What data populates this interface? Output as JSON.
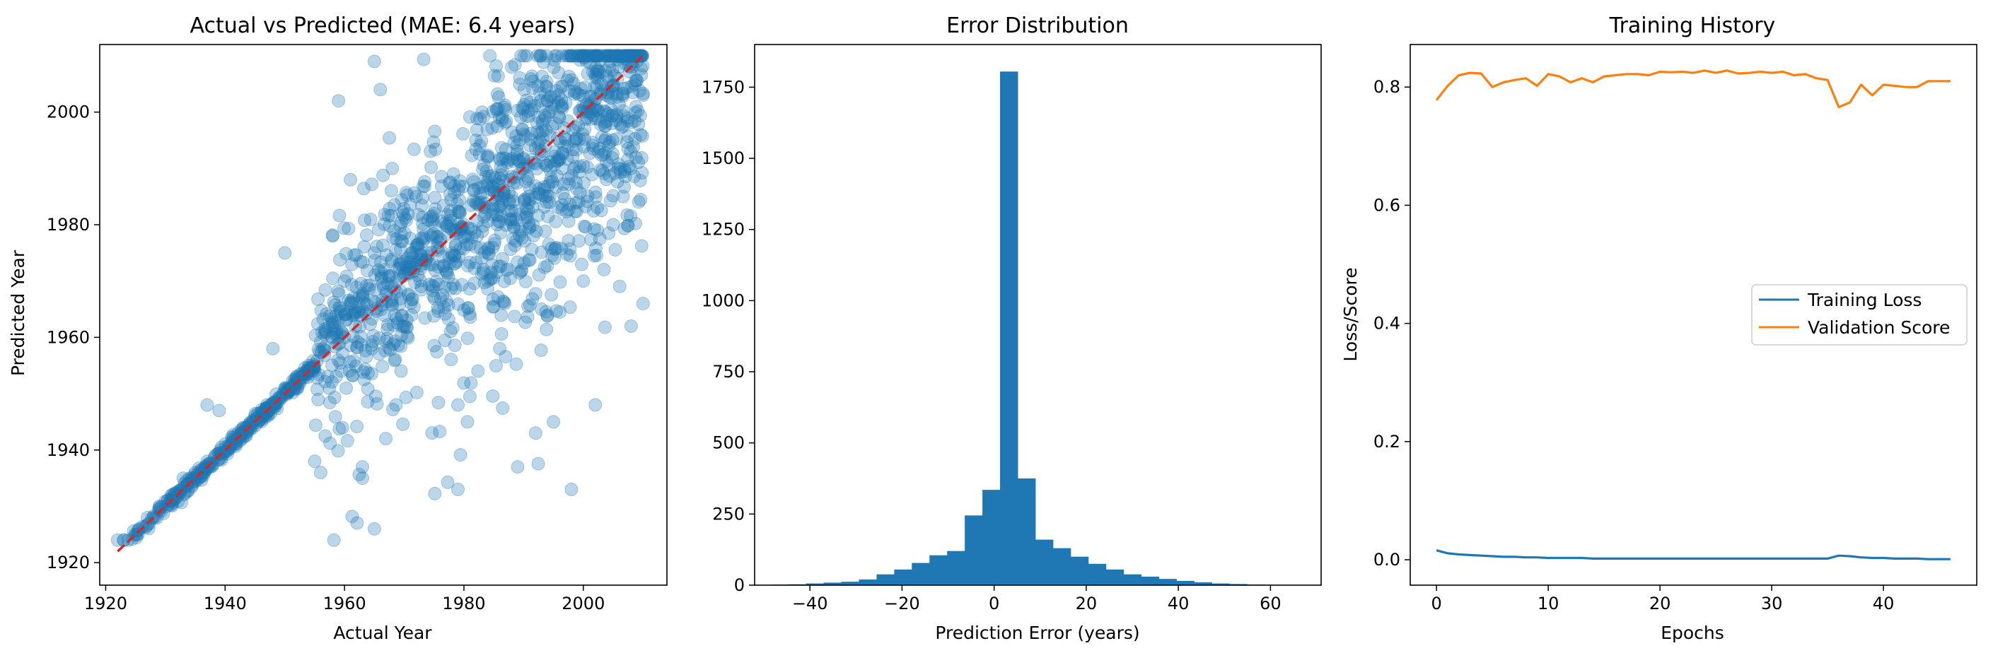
{
  "colors": {
    "scatter": "#1f77b4",
    "diagonal": "#d62728",
    "hist": "#1f77b4",
    "train_loss": "#1f77b4",
    "val_score": "#ff7f0e"
  },
  "chart_data": [
    {
      "type": "scatter",
      "title": "Actual vs Predicted (MAE: 6.4 years)",
      "xlabel": "Actual Year",
      "ylabel": "Predicted Year",
      "xlim": [
        1919,
        2014
      ],
      "ylim": [
        1916,
        2012
      ],
      "xticks": [
        1920,
        1940,
        1960,
        1980,
        2000
      ],
      "yticks": [
        1920,
        1940,
        1960,
        1980,
        2000
      ],
      "reference_line": {
        "x": [
          1922,
          2010
        ],
        "y": [
          1922,
          2010
        ],
        "style": "dashed"
      },
      "points_sample": [
        [
          1922,
          1924
        ],
        [
          1923,
          1924
        ],
        [
          1925,
          1925
        ],
        [
          1927,
          1928
        ],
        [
          1929,
          1930
        ],
        [
          1931,
          1932
        ],
        [
          1933,
          1935
        ],
        [
          1935,
          1936
        ],
        [
          1937,
          1938
        ],
        [
          1937,
          1948
        ],
        [
          1939,
          1947
        ],
        [
          1941,
          1941
        ],
        [
          1943,
          1944
        ],
        [
          1945,
          1946
        ],
        [
          1947,
          1948
        ],
        [
          1948,
          1958
        ],
        [
          1950,
          1975
        ],
        [
          1950,
          1951
        ],
        [
          1952,
          1953
        ],
        [
          1954,
          1955
        ],
        [
          1955,
          1938
        ],
        [
          1956,
          1936
        ],
        [
          1958,
          1960
        ],
        [
          1958,
          1978
        ],
        [
          1959,
          2002
        ],
        [
          1960,
          1960
        ],
        [
          1960,
          1970
        ],
        [
          1961,
          1988
        ],
        [
          1963,
          1935
        ],
        [
          1963,
          1937
        ],
        [
          1963,
          1965
        ],
        [
          1965,
          2009
        ],
        [
          1965,
          1926
        ],
        [
          1965,
          1975
        ],
        [
          1966,
          2004
        ],
        [
          1968,
          1990
        ],
        [
          1970,
          1962
        ],
        [
          1972,
          1985
        ],
        [
          1975,
          1982
        ],
        [
          1978,
          1975
        ],
        [
          1979,
          1933
        ],
        [
          1979,
          1948
        ],
        [
          1980,
          1980
        ],
        [
          1982,
          1995
        ],
        [
          1984,
          1970
        ],
        [
          1986,
          1958
        ],
        [
          1988,
          1985
        ],
        [
          1988,
          2008
        ],
        [
          1989,
          1937
        ],
        [
          1990,
          1990
        ],
        [
          1992,
          1943
        ],
        [
          1993,
          1965
        ],
        [
          1995,
          1945
        ],
        [
          1996,
          1999
        ],
        [
          1998,
          1933
        ],
        [
          2000,
          2000
        ],
        [
          2000,
          1970
        ],
        [
          2002,
          1948
        ],
        [
          2003,
          2005
        ],
        [
          2005,
          1980
        ],
        [
          2006,
          2008
        ],
        [
          2008,
          1962
        ],
        [
          2009,
          2009
        ],
        [
          2010,
          2003
        ],
        [
          2010,
          1966
        ]
      ]
    },
    {
      "type": "bar",
      "title": "Error Distribution",
      "xlabel": "Prediction Error (years)",
      "ylabel": "",
      "xlim": [
        -52,
        71
      ],
      "ylim": [
        0,
        1900
      ],
      "xticks": [
        -40,
        -20,
        0,
        20,
        40,
        60
      ],
      "yticks": [
        0,
        250,
        500,
        750,
        1000,
        1250,
        1500,
        1750
      ],
      "bin_width": 3.83,
      "bin_start": -48.5,
      "values": [
        2,
        3,
        6,
        9,
        12,
        20,
        38,
        55,
        78,
        105,
        120,
        245,
        335,
        1805,
        375,
        160,
        130,
        100,
        75,
        55,
        38,
        30,
        22,
        15,
        10,
        6,
        4,
        2,
        1,
        1
      ]
    },
    {
      "type": "line",
      "title": "Training History",
      "xlabel": "Epochs",
      "ylabel": "Loss/Score",
      "xlim": [
        -2.35,
        48.35
      ],
      "ylim": [
        -0.043,
        0.872
      ],
      "xticks": [
        0,
        10,
        20,
        30,
        40
      ],
      "yticks": [
        0.0,
        0.2,
        0.4,
        0.6,
        0.8
      ],
      "legend": "center-right",
      "x": [
        0,
        1,
        2,
        3,
        4,
        5,
        6,
        7,
        8,
        9,
        10,
        11,
        12,
        13,
        14,
        15,
        16,
        17,
        18,
        19,
        20,
        21,
        22,
        23,
        24,
        25,
        26,
        27,
        28,
        29,
        30,
        31,
        32,
        33,
        34,
        35,
        36,
        37,
        38,
        39,
        40,
        41,
        42,
        43,
        44,
        45,
        46
      ],
      "series": [
        {
          "name": "Training Loss",
          "values": [
            0.016,
            0.011,
            0.009,
            0.008,
            0.007,
            0.006,
            0.005,
            0.005,
            0.004,
            0.004,
            0.003,
            0.003,
            0.003,
            0.003,
            0.002,
            0.002,
            0.002,
            0.002,
            0.002,
            0.002,
            0.002,
            0.002,
            0.002,
            0.002,
            0.002,
            0.002,
            0.002,
            0.002,
            0.002,
            0.002,
            0.002,
            0.002,
            0.002,
            0.002,
            0.002,
            0.002,
            0.007,
            0.006,
            0.004,
            0.003,
            0.003,
            0.002,
            0.002,
            0.002,
            0.001,
            0.001,
            0.001
          ]
        },
        {
          "name": "Validation Score",
          "values": [
            0.778,
            0.802,
            0.82,
            0.824,
            0.823,
            0.8,
            0.808,
            0.812,
            0.815,
            0.802,
            0.822,
            0.818,
            0.808,
            0.815,
            0.808,
            0.818,
            0.82,
            0.822,
            0.822,
            0.82,
            0.826,
            0.825,
            0.826,
            0.824,
            0.828,
            0.824,
            0.828,
            0.823,
            0.824,
            0.826,
            0.824,
            0.826,
            0.82,
            0.822,
            0.815,
            0.812,
            0.766,
            0.774,
            0.804,
            0.786,
            0.804,
            0.802,
            0.8,
            0.8,
            0.81,
            0.81,
            0.81
          ]
        }
      ]
    }
  ]
}
